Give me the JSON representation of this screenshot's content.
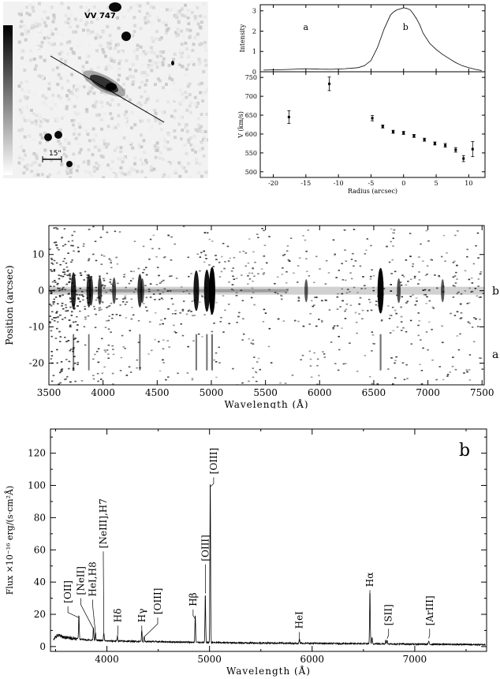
{
  "image_panel": {
    "title": "VV 747",
    "scale_label": "15\""
  },
  "chart_data": [
    {
      "type": "line",
      "id": "intensity-profile",
      "ylabel": "Intensity",
      "xlim": [
        -22,
        12.5
      ],
      "ylim": [
        0,
        3.3
      ],
      "yticks": [
        0,
        1,
        2,
        3
      ],
      "annotations": [
        {
          "text": "a",
          "x": -15,
          "y": 2.05
        },
        {
          "text": "b",
          "x": 0.3,
          "y": 2.05
        }
      ],
      "series": [
        {
          "x": [
            -21.5,
            -19,
            -17,
            -15,
            -13,
            -11,
            -9,
            -7,
            -6,
            -5,
            -4,
            -3,
            -2,
            -1.5,
            -1,
            -0.5,
            0,
            0.5,
            1,
            1.5,
            2,
            2.5,
            3,
            4,
            5,
            6,
            7,
            8,
            9,
            10,
            11,
            12
          ],
          "y": [
            0.08,
            0.1,
            0.12,
            0.15,
            0.13,
            0.12,
            0.15,
            0.2,
            0.3,
            0.55,
            1.2,
            2.1,
            2.8,
            2.95,
            3.05,
            3.1,
            3.15,
            3.12,
            3.05,
            2.85,
            2.6,
            2.3,
            1.9,
            1.4,
            1.1,
            0.85,
            0.65,
            0.45,
            0.3,
            0.2,
            0.12,
            0.06
          ]
        }
      ]
    },
    {
      "type": "scatter",
      "id": "velocity-profile",
      "xlabel": "Radius (arcsec)",
      "ylabel": "V (km/s)",
      "xlim": [
        -22,
        12.5
      ],
      "ylim": [
        485,
        765
      ],
      "xticks": [
        -20,
        -15,
        -10,
        -5,
        0,
        5,
        10
      ],
      "yticks": [
        500,
        550,
        600,
        650,
        700,
        750
      ],
      "points": [
        {
          "x": -17.6,
          "y": 645,
          "err": 17
        },
        {
          "x": -11.4,
          "y": 733,
          "err": 18
        },
        {
          "x": -4.8,
          "y": 642,
          "err": 7
        },
        {
          "x": -3.2,
          "y": 620,
          "err": 4
        },
        {
          "x": -1.6,
          "y": 606,
          "err": 4
        },
        {
          "x": 0,
          "y": 603,
          "err": 4
        },
        {
          "x": 1.6,
          "y": 595,
          "err": 4
        },
        {
          "x": 3.2,
          "y": 585,
          "err": 4
        },
        {
          "x": 4.8,
          "y": 575,
          "err": 4
        },
        {
          "x": 6.4,
          "y": 570,
          "err": 5
        },
        {
          "x": 8,
          "y": 558,
          "err": 6
        },
        {
          "x": 9.2,
          "y": 535,
          "err": 8
        },
        {
          "x": 10.6,
          "y": 560,
          "err": 20
        }
      ]
    },
    {
      "type": "heatmap",
      "id": "2d-spectrum",
      "xlabel": "Wavelength (Å)",
      "ylabel": "Position (arcsec)",
      "xlim": [
        3500,
        7520
      ],
      "ylim": [
        -26,
        18
      ],
      "xticks": [
        3500,
        4000,
        4500,
        5000,
        5500,
        6000,
        6500,
        7000,
        7500
      ],
      "yticks": [
        -20,
        -10,
        0,
        10
      ],
      "side_labels": [
        {
          "text": "b",
          "y": 0
        },
        {
          "text": "a",
          "y": -17.5
        }
      ],
      "emission_lines": [
        {
          "x": 3727,
          "strength": 0.7
        },
        {
          "x": 3869,
          "strength": 0.6
        },
        {
          "x": 3889,
          "strength": 0.5
        },
        {
          "x": 3970,
          "strength": 0.45
        },
        {
          "x": 4102,
          "strength": 0.4
        },
        {
          "x": 4340,
          "strength": 0.6
        },
        {
          "x": 4363,
          "strength": 0.35
        },
        {
          "x": 4861,
          "strength": 0.8
        },
        {
          "x": 4959,
          "strength": 0.85
        },
        {
          "x": 5007,
          "strength": 1.0
        },
        {
          "x": 5876,
          "strength": 0.3
        },
        {
          "x": 6563,
          "strength": 0.95
        },
        {
          "x": 6731,
          "strength": 0.35
        },
        {
          "x": 7136,
          "strength": 0.3
        }
      ]
    },
    {
      "type": "line",
      "id": "1d-spectrum",
      "label": "b",
      "xlabel": "Wavelength (Å)",
      "ylabel": "Flux ×10⁻¹⁶ erg/(s·cm²Å)",
      "xlim": [
        3450,
        7700
      ],
      "ylim": [
        -3,
        135
      ],
      "xticks": [
        4000,
        5000,
        6000,
        7000
      ],
      "yticks": [
        0,
        20,
        40,
        60,
        80,
        100,
        120
      ],
      "continuum": [
        {
          "x": 3480,
          "y": 5
        },
        {
          "x": 3520,
          "y": 7
        },
        {
          "x": 3600,
          "y": 5.5
        },
        {
          "x": 3700,
          "y": 5
        },
        {
          "x": 3800,
          "y": 4.2
        },
        {
          "x": 4000,
          "y": 3.5
        },
        {
          "x": 4500,
          "y": 3
        },
        {
          "x": 5000,
          "y": 2.5
        },
        {
          "x": 5500,
          "y": 2.2
        },
        {
          "x": 6000,
          "y": 2
        },
        {
          "x": 6500,
          "y": 1.8
        },
        {
          "x": 7000,
          "y": 1.5
        },
        {
          "x": 7690,
          "y": 1.2
        }
      ],
      "lines": [
        {
          "x": 3727,
          "peak": 15
        },
        {
          "x": 3869,
          "peak": 8
        },
        {
          "x": 3889,
          "peak": 5
        },
        {
          "x": 3970,
          "peak": 5
        },
        {
          "x": 4102,
          "peak": 3
        },
        {
          "x": 4340,
          "peak": 7
        },
        {
          "x": 4363,
          "peak": 3
        },
        {
          "x": 4861,
          "peak": 17
        },
        {
          "x": 4959,
          "peak": 30
        },
        {
          "x": 5007,
          "peak": 103
        },
        {
          "x": 5876,
          "peak": 2.5
        },
        {
          "x": 6563,
          "peak": 33
        },
        {
          "x": 6584,
          "peak": 4
        },
        {
          "x": 6717,
          "peak": 2.5
        },
        {
          "x": 6731,
          "peak": 2
        },
        {
          "x": 7136,
          "peak": 2
        }
      ],
      "line_labels": [
        {
          "text": "[OII]",
          "x": 3727,
          "label_x": 3620,
          "label_y": 27
        },
        {
          "text": "[NeII]",
          "x": 3869,
          "label_x": 3745,
          "label_y": 32
        },
        {
          "text": "HeI,H8",
          "x": 3889,
          "label_x": 3862,
          "label_y": 31
        },
        {
          "text": "[NeIII],H7",
          "x": 3970,
          "label_x": 3965,
          "label_y": 61
        },
        {
          "text": "Hδ",
          "x": 4102,
          "label_x": 4108,
          "label_y": 15
        },
        {
          "text": "Hγ",
          "x": 4340,
          "label_x": 4340,
          "label_y": 15
        },
        {
          "text": "[OIII]",
          "x": 4363,
          "label_x": 4495,
          "label_y": 20
        },
        {
          "text": "Hβ",
          "x": 4861,
          "label_x": 4840,
          "label_y": 25
        },
        {
          "text": "[OIII]",
          "x": 4959,
          "label_x": 4960,
          "label_y": 53
        },
        {
          "text": "[OIII]",
          "x": 5007,
          "label_x": 5040,
          "label_y": 107
        },
        {
          "text": "HeI",
          "x": 5876,
          "label_x": 5876,
          "label_y": 11
        },
        {
          "text": "Hα",
          "x": 6563,
          "label_x": 6563,
          "label_y": 37
        },
        {
          "text": "[SII]",
          "x": 6731,
          "label_x": 6745,
          "label_y": 13
        },
        {
          "text": "[ArIII]",
          "x": 7136,
          "label_x": 7145,
          "label_y": 13
        }
      ]
    }
  ]
}
